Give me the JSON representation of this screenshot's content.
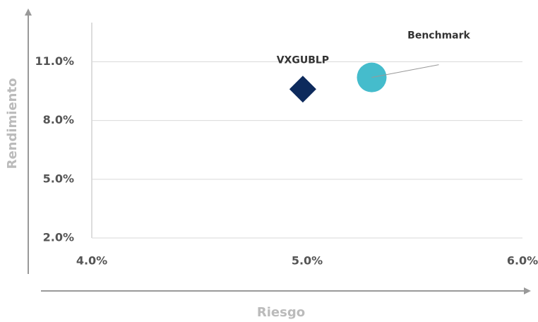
{
  "chart_data": {
    "type": "scatter",
    "xlabel": "Riesgo",
    "ylabel": "Rendimiento",
    "xlim": [
      4,
      6
    ],
    "ylim": [
      2,
      13
    ],
    "xticks": [
      {
        "value": 4,
        "label": "4.0%"
      },
      {
        "value": 5,
        "label": "5.0%"
      },
      {
        "value": 6,
        "label": "6.0%"
      }
    ],
    "yticks": [
      {
        "value": 2,
        "label": "2.0%"
      },
      {
        "value": 5,
        "label": "5.0%"
      },
      {
        "value": 8,
        "label": "8.0%"
      },
      {
        "value": 11,
        "label": "11.0%"
      }
    ],
    "grid": true,
    "series": [
      {
        "name": "VXGUBLP",
        "color": "#0d2a5c",
        "marker": "diamond",
        "x": [
          4.98
        ],
        "values": [
          9.6
        ]
      },
      {
        "name": "Benchmark",
        "color": "#45bccc",
        "marker": "circle",
        "x": [
          5.3
        ],
        "values": [
          10.2
        ]
      }
    ]
  }
}
